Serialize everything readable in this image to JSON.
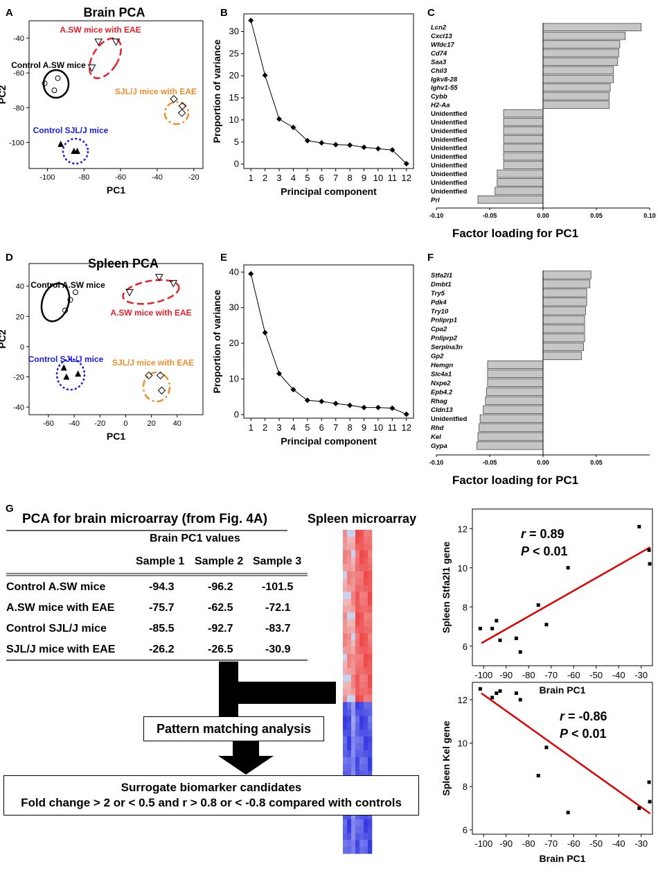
{
  "chart_data": [
    {
      "panel": "A",
      "type": "scatter",
      "title": "Brain PCA",
      "xlabel": "PC1",
      "ylabel": "PC2",
      "xlim": [
        -110,
        -15
      ],
      "ylim": [
        -115,
        -30
      ],
      "xticks": [
        -100,
        -80,
        -60,
        -40,
        -20
      ],
      "yticks": [
        -100,
        -80,
        -60,
        -40
      ],
      "groups": [
        {
          "name": "Control A.SW mice",
          "label": "Control A.SW mice",
          "color": "#000000",
          "marker": "circle",
          "points": [
            [
              -94.3,
              -63
            ],
            [
              -96.2,
              -70
            ],
            [
              -101.5,
              -66
            ]
          ]
        },
        {
          "name": "A.SW mice with EAE",
          "label": "A.SW mice with EAE",
          "color": "#e8202a",
          "marker": "tri-down",
          "points": [
            [
              -75.7,
              -57
            ],
            [
              -72.1,
              -42
            ],
            [
              -62.5,
              -42
            ]
          ]
        },
        {
          "name": "SJL/J mice with EAE",
          "label": "SJL/J mice with EAE",
          "color": "#f08c2b",
          "marker": "diamond",
          "points": [
            [
              -30.9,
              -75
            ],
            [
              -26.2,
              -79
            ],
            [
              -26.5,
              -83
            ]
          ]
        },
        {
          "name": "Control SJL/J mice",
          "label": "Control SJL/J mice",
          "color": "#1a1ae6",
          "marker": "tri-up",
          "points": [
            [
              -92.7,
              -101
            ],
            [
              -85.5,
              -105
            ],
            [
              -83.7,
              -105
            ]
          ]
        }
      ]
    },
    {
      "panel": "B",
      "type": "line",
      "xlabel": "Principal component",
      "ylabel": "Proportion of variance",
      "x": [
        1,
        2,
        3,
        4,
        5,
        6,
        7,
        8,
        9,
        10,
        11,
        12
      ],
      "values": [
        32.5,
        20.1,
        10.2,
        8.3,
        5.3,
        4.8,
        4.4,
        4.3,
        3.8,
        3.5,
        3.2,
        0.1
      ],
      "ylim": [
        -1,
        34
      ],
      "yticks": [
        0,
        5,
        10,
        15,
        20,
        25,
        30
      ]
    },
    {
      "panel": "C",
      "type": "bar",
      "orientation": "horizontal",
      "xlabel": "Factor loading for PC1",
      "xlim": [
        -0.1,
        0.1
      ],
      "xticks": [
        "-0.10",
        "-0.05",
        "0.00",
        "0.05",
        "0.10"
      ],
      "categories": [
        "Lcn2",
        "Cxcl13",
        "Wfdc17",
        "Cd74",
        "Saa3",
        "Chil3",
        "Igkv8-28",
        "Ighv1-55",
        "Cybb",
        "H2-Aa",
        "Unidentfied",
        "Unidentfied",
        "Unidentfied",
        "Unidentfied",
        "Unidentfied",
        "Unidentfied",
        "Unidentfied",
        "Unidentfied",
        "Unidentfied",
        "Unidentfied",
        "Prl"
      ],
      "values": [
        0.092,
        0.077,
        0.072,
        0.071,
        0.07,
        0.066,
        0.066,
        0.063,
        0.062,
        0.062,
        -0.037,
        -0.037,
        -0.037,
        -0.037,
        -0.037,
        -0.037,
        -0.037,
        -0.043,
        -0.043,
        -0.045,
        -0.061
      ]
    },
    {
      "panel": "D",
      "type": "scatter",
      "title": "Spleen PCA",
      "xlabel": "PC1",
      "ylabel": "PC2",
      "xlim": [
        -75,
        60
      ],
      "ylim": [
        -45,
        55
      ],
      "xticks": [
        -60,
        -40,
        -20,
        0,
        20,
        40
      ],
      "yticks": [
        -40,
        -20,
        0,
        20,
        40
      ],
      "groups": [
        {
          "name": "Control A.SW mice",
          "label": "Control A.SW mice",
          "color": "#000000",
          "marker": "circle",
          "points": [
            [
              -47,
              24
            ],
            [
              -43,
              31
            ],
            [
              -39,
              36
            ]
          ]
        },
        {
          "name": "A.SW mice with EAE",
          "label": "A.SW mice with EAE",
          "color": "#e8202a",
          "marker": "tri-down",
          "points": [
            [
              3,
              36
            ],
            [
              26,
              46
            ],
            [
              37,
              42
            ]
          ]
        },
        {
          "name": "Control SJL/J mice",
          "label": "Control SJL/J mice",
          "color": "#1a1ae6",
          "marker": "tri-up",
          "points": [
            [
              -48,
              -14
            ],
            [
              -46,
              -20
            ],
            [
              -37,
              -18
            ]
          ]
        },
        {
          "name": "SJL/J mice with EAE",
          "label": "SJL/J mice with EAE",
          "color": "#f08c2b",
          "marker": "diamond",
          "points": [
            [
              18,
              -19
            ],
            [
              27,
              -19
            ],
            [
              28,
              -29
            ]
          ]
        }
      ]
    },
    {
      "panel": "E",
      "type": "line",
      "xlabel": "Principal component",
      "ylabel": "Proportion of variance",
      "x": [
        1,
        2,
        3,
        4,
        5,
        6,
        7,
        8,
        9,
        10,
        11,
        12
      ],
      "values": [
        39.5,
        23.0,
        11.5,
        7.0,
        4.0,
        3.7,
        3.1,
        2.6,
        2.0,
        2.0,
        1.8,
        0.1
      ],
      "ylim": [
        -1,
        42
      ],
      "yticks": [
        0,
        10,
        20,
        30,
        40
      ]
    },
    {
      "panel": "F",
      "type": "bar",
      "orientation": "horizontal",
      "xlabel": "Factor loading for PC1",
      "xlim": [
        -0.1,
        0.1
      ],
      "xticks": [
        "-0.10",
        "-0.05",
        "0.00",
        "0.05"
      ],
      "categories": [
        "Stfa2l1",
        "Dmbt1",
        "Try5",
        "Pdk4",
        "Try10",
        "Pnliprp1",
        "Cpa2",
        "Pnliprp2",
        "Serpina3n",
        "Gp2",
        "Hemgn",
        "Slc4a1",
        "Nxpe2",
        "Epb4.2",
        "Rhag",
        "Cldn13",
        "Unidentfied",
        "Rhd",
        "Kel",
        "Gypa"
      ],
      "values": [
        0.045,
        0.044,
        0.041,
        0.041,
        0.04,
        0.039,
        0.039,
        0.039,
        0.038,
        0.036,
        -0.052,
        -0.052,
        -0.052,
        -0.053,
        -0.054,
        -0.056,
        -0.059,
        -0.06,
        -0.061,
        -0.062
      ]
    },
    {
      "panel": "G-top",
      "type": "scatter",
      "xlabel": "Brain PC1",
      "ylabel": "Spleen Stfa2l1 gene",
      "xlim": [
        -105,
        -25
      ],
      "ylim": [
        5,
        13
      ],
      "xticks": [
        -100,
        -90,
        -80,
        -70,
        -60,
        -50,
        -40,
        -30
      ],
      "yticks": [
        6,
        8,
        10,
        12
      ],
      "r_label": "r",
      "r_value": "= 0.89",
      "p_label": "P",
      "p_value": "< 0.01",
      "points": [
        [
          -101.5,
          6.9
        ],
        [
          -96.2,
          6.9
        ],
        [
          -94.3,
          7.3
        ],
        [
          -92.7,
          6.3
        ],
        [
          -85.5,
          6.4
        ],
        [
          -83.7,
          5.7
        ],
        [
          -75.7,
          8.1
        ],
        [
          -72.1,
          7.1
        ],
        [
          -62.5,
          10.0
        ],
        [
          -30.9,
          12.1
        ],
        [
          -26.5,
          10.9
        ],
        [
          -26.2,
          10.2
        ]
      ],
      "fit": [
        [
          -101,
          6.15
        ],
        [
          -26,
          11.05
        ]
      ]
    },
    {
      "panel": "G-bottom",
      "type": "scatter",
      "xlabel": "Brain PC1",
      "ylabel": "Spleen Kel gene",
      "xlim": [
        -105,
        -25
      ],
      "ylim": [
        5.8,
        12.8
      ],
      "xticks": [
        -100,
        -90,
        -80,
        -70,
        -60,
        -50,
        -40,
        -30
      ],
      "yticks": [
        6,
        8,
        10,
        12
      ],
      "r_label": "r",
      "r_value": "= -0.86",
      "p_label": "P",
      "p_value": "< 0.01",
      "points": [
        [
          -101.5,
          12.5
        ],
        [
          -96.2,
          12.1
        ],
        [
          -94.3,
          12.3
        ],
        [
          -92.7,
          12.4
        ],
        [
          -85.5,
          12.3
        ],
        [
          -83.7,
          12.0
        ],
        [
          -75.7,
          8.5
        ],
        [
          -72.1,
          9.8
        ],
        [
          -62.5,
          6.8
        ],
        [
          -30.9,
          7.0
        ],
        [
          -26.5,
          8.2
        ],
        [
          -26.2,
          7.3
        ]
      ],
      "fit": [
        [
          -101,
          12.3
        ],
        [
          -26,
          6.75
        ]
      ]
    }
  ],
  "panel_letters": {
    "a": "A",
    "b": "B",
    "c": "C",
    "d": "D",
    "e": "E",
    "f": "F",
    "g": "G"
  },
  "table": {
    "title": "PCA for brain microarray (from Fig. 4A)",
    "group_header": "Brain PC1 values",
    "columns": [
      "Sample 1",
      "Sample 2",
      "Sample 3"
    ],
    "rows": [
      {
        "label": "Control A.SW mice",
        "values": [
          "-94.3",
          "-96.2",
          "-101.5"
        ]
      },
      {
        "label": "A.SW mice with EAE",
        "values": [
          "-75.7",
          "-62.5",
          "-72.1"
        ]
      },
      {
        "label": "Control SJL/J mice",
        "values": [
          "-85.5",
          "-92.7",
          "-83.7"
        ]
      },
      {
        "label": "SJL/J mice with EAE",
        "values": [
          "-26.2",
          "-26.5",
          "-30.9"
        ]
      }
    ]
  },
  "heatmap": {
    "title": "Spleen microarray"
  },
  "flow": {
    "pattern_box": "Pattern matching analysis",
    "result_line1": "Surrogate biomarker candidates",
    "result_line2": "Fold change > 2 or < 0.5 and r > 0.8 or < -0.8 compared with controls"
  }
}
